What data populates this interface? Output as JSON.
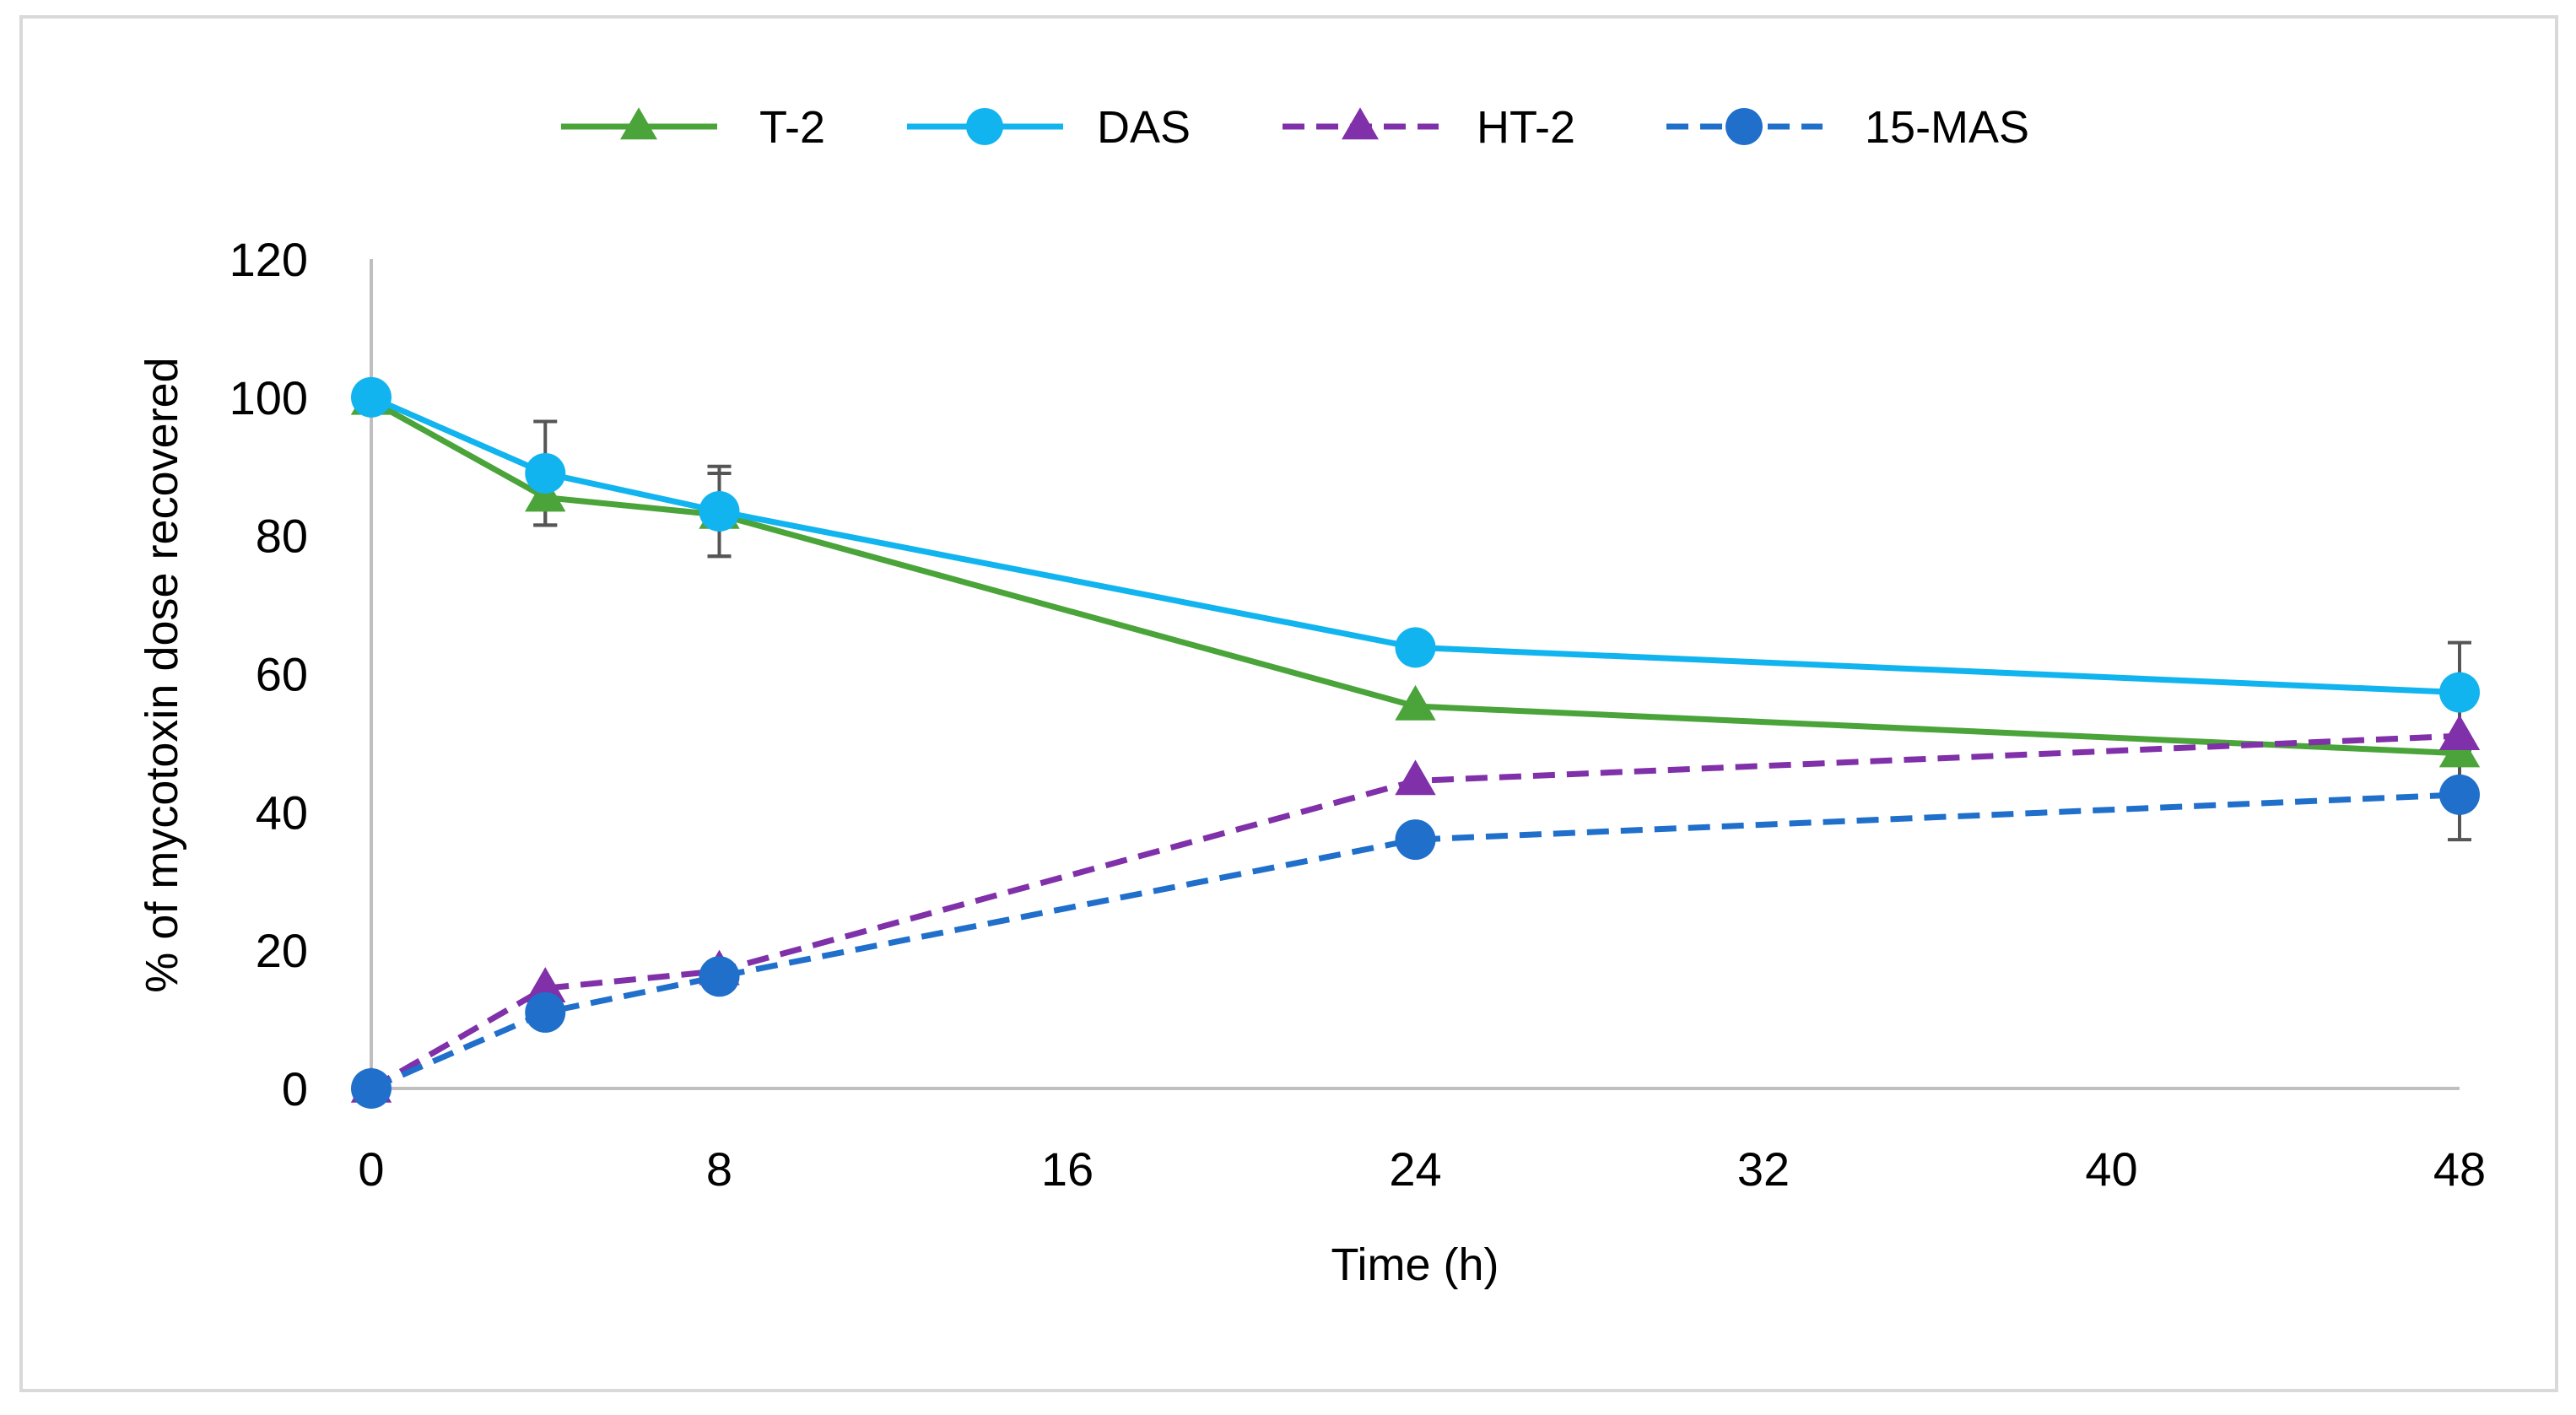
{
  "chart_data": {
    "type": "line",
    "title": "",
    "xlabel": "Time (h)",
    "ylabel": "% of mycotoxin dose recovered",
    "xlim": [
      0,
      48
    ],
    "ylim": [
      0,
      120
    ],
    "xticks": [
      0,
      8,
      16,
      24,
      32,
      40,
      48
    ],
    "yticks": [
      0,
      20,
      40,
      60,
      80,
      100,
      120
    ],
    "grid": false,
    "legend_position": "top",
    "series": [
      {
        "name": "T-2",
        "color": "#4aa43a",
        "dash": "solid",
        "marker": "triangle",
        "x": [
          0,
          4,
          8,
          24,
          48
        ],
        "y": [
          99.5,
          85.5,
          83,
          55.3,
          48.5
        ],
        "err": [
          0,
          4,
          6,
          0,
          0
        ]
      },
      {
        "name": "DAS",
        "color": "#11b4ee",
        "dash": "solid",
        "marker": "circle",
        "x": [
          0,
          4,
          8,
          24,
          48
        ],
        "y": [
          100,
          89,
          83.5,
          63.8,
          57.3
        ],
        "err": [
          0,
          7.5,
          6.5,
          0,
          7.2
        ]
      },
      {
        "name": "HT-2",
        "color": "#8030a8",
        "dash": "dashed",
        "marker": "triangle",
        "x": [
          0,
          4,
          8,
          24,
          48
        ],
        "y": [
          0,
          14.5,
          17,
          44.5,
          51
        ],
        "err": [
          0,
          0,
          0,
          0,
          0
        ]
      },
      {
        "name": "15-MAS",
        "color": "#1f6fcb",
        "dash": "dashed",
        "marker": "circle",
        "x": [
          0,
          4,
          8,
          24,
          48
        ],
        "y": [
          0,
          11,
          16.2,
          36,
          42.5
        ],
        "err": [
          0,
          0,
          0,
          0,
          6.5
        ]
      }
    ]
  }
}
